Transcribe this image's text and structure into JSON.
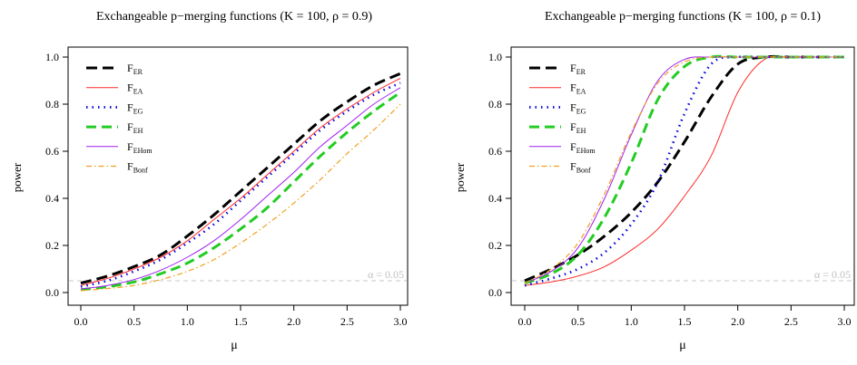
{
  "chart_data": [
    {
      "type": "line",
      "title": "Exchangeable p−merging functions (K = 100, ρ = 0.9)",
      "xlabel": "μ",
      "ylabel": "power",
      "xlim": [
        0,
        3
      ],
      "ylim": [
        0,
        1
      ],
      "x_ticks": [
        "0.0",
        "0.5",
        "1.0",
        "1.5",
        "2.0",
        "2.5",
        "3.0"
      ],
      "y_ticks": [
        "0.0",
        "0.2",
        "0.4",
        "0.6",
        "0.8",
        "1.0"
      ],
      "legend_position": "top-left",
      "reference_line": {
        "y": 0.05,
        "label": "α = 0.05",
        "color": "#c8c8c8"
      },
      "x": [
        0,
        0.25,
        0.5,
        0.75,
        1.0,
        1.25,
        1.5,
        1.75,
        2.0,
        2.25,
        2.5,
        2.75,
        3.0
      ],
      "series": [
        {
          "base": "F",
          "sub": "ER",
          "color": "#000000",
          "dash": "12,6",
          "width": 3,
          "values": [
            0.04,
            0.07,
            0.11,
            0.16,
            0.24,
            0.33,
            0.43,
            0.53,
            0.63,
            0.73,
            0.81,
            0.88,
            0.93
          ]
        },
        {
          "base": "F",
          "sub": "EA",
          "color": "#ff2a2a",
          "dash": "",
          "width": 1,
          "values": [
            0.03,
            0.06,
            0.1,
            0.15,
            0.22,
            0.31,
            0.4,
            0.5,
            0.6,
            0.7,
            0.78,
            0.85,
            0.91
          ]
        },
        {
          "base": "F",
          "sub": "EG",
          "color": "#0000e0",
          "dash": "1.5,5",
          "width": 2.6,
          "values": [
            0.025,
            0.05,
            0.09,
            0.14,
            0.21,
            0.29,
            0.39,
            0.49,
            0.59,
            0.69,
            0.77,
            0.84,
            0.89
          ]
        },
        {
          "base": "F",
          "sub": "EH",
          "color": "#22cc22",
          "dash": "11,6",
          "width": 3,
          "values": [
            0.012,
            0.025,
            0.045,
            0.08,
            0.125,
            0.19,
            0.27,
            0.36,
            0.47,
            0.58,
            0.68,
            0.77,
            0.85
          ]
        },
        {
          "base": "F",
          "sub": "EHom",
          "color": "#a020f0",
          "dash": "",
          "width": 1,
          "values": [
            0.015,
            0.03,
            0.055,
            0.095,
            0.15,
            0.22,
            0.31,
            0.41,
            0.51,
            0.62,
            0.71,
            0.8,
            0.87
          ]
        },
        {
          "base": "F",
          "sub": "Bonf",
          "color": "#f0a020",
          "dash": "6,3,1.5,3",
          "width": 1.2,
          "values": [
            0.008,
            0.017,
            0.03,
            0.055,
            0.09,
            0.14,
            0.21,
            0.29,
            0.38,
            0.48,
            0.59,
            0.69,
            0.8
          ]
        }
      ]
    },
    {
      "type": "line",
      "title": "Exchangeable p−merging functions (K = 100, ρ = 0.1)",
      "xlabel": "μ",
      "ylabel": "power",
      "xlim": [
        0,
        3
      ],
      "ylim": [
        0,
        1
      ],
      "x_ticks": [
        "0.0",
        "0.5",
        "1.0",
        "1.5",
        "2.0",
        "2.5",
        "3.0"
      ],
      "y_ticks": [
        "0.0",
        "0.2",
        "0.4",
        "0.6",
        "0.8",
        "1.0"
      ],
      "legend_position": "top-left",
      "reference_line": {
        "y": 0.05,
        "label": "α = 0.05",
        "color": "#c8c8c8"
      },
      "x": [
        0,
        0.25,
        0.5,
        0.75,
        1.0,
        1.25,
        1.5,
        1.75,
        2.0,
        2.25,
        2.5,
        2.75,
        3.0
      ],
      "series": [
        {
          "base": "F",
          "sub": "ER",
          "color": "#000000",
          "dash": "12,6",
          "width": 3,
          "values": [
            0.05,
            0.1,
            0.16,
            0.24,
            0.34,
            0.47,
            0.64,
            0.83,
            0.97,
            1.0,
            1.0,
            1.0,
            1.0
          ]
        },
        {
          "base": "F",
          "sub": "EA",
          "color": "#ff2a2a",
          "dash": "",
          "width": 1,
          "values": [
            0.03,
            0.045,
            0.07,
            0.11,
            0.18,
            0.27,
            0.41,
            0.58,
            0.85,
            0.99,
            1.0,
            1.0,
            1.0
          ]
        },
        {
          "base": "F",
          "sub": "EG",
          "color": "#0000e0",
          "dash": "1.5,5",
          "width": 2.6,
          "values": [
            0.03,
            0.06,
            0.1,
            0.17,
            0.29,
            0.47,
            0.76,
            0.97,
            1.0,
            1.0,
            1.0,
            1.0,
            1.0
          ]
        },
        {
          "base": "F",
          "sub": "EH",
          "color": "#22cc22",
          "dash": "11,6",
          "width": 3,
          "values": [
            0.04,
            0.08,
            0.16,
            0.32,
            0.55,
            0.82,
            0.96,
            1.0,
            1.0,
            1.0,
            1.0,
            1.0,
            1.0
          ]
        },
        {
          "base": "F",
          "sub": "EHom",
          "color": "#a020f0",
          "dash": "",
          "width": 1,
          "values": [
            0.04,
            0.09,
            0.19,
            0.4,
            0.67,
            0.9,
            0.99,
            1.0,
            1.0,
            1.0,
            1.0,
            1.0,
            1.0
          ]
        },
        {
          "base": "F",
          "sub": "Bonf",
          "color": "#f0a020",
          "dash": "6,3,1.5,3",
          "width": 1.2,
          "values": [
            0.04,
            0.1,
            0.21,
            0.42,
            0.68,
            0.89,
            0.98,
            1.0,
            1.0,
            1.0,
            1.0,
            1.0,
            1.0
          ]
        }
      ]
    }
  ]
}
